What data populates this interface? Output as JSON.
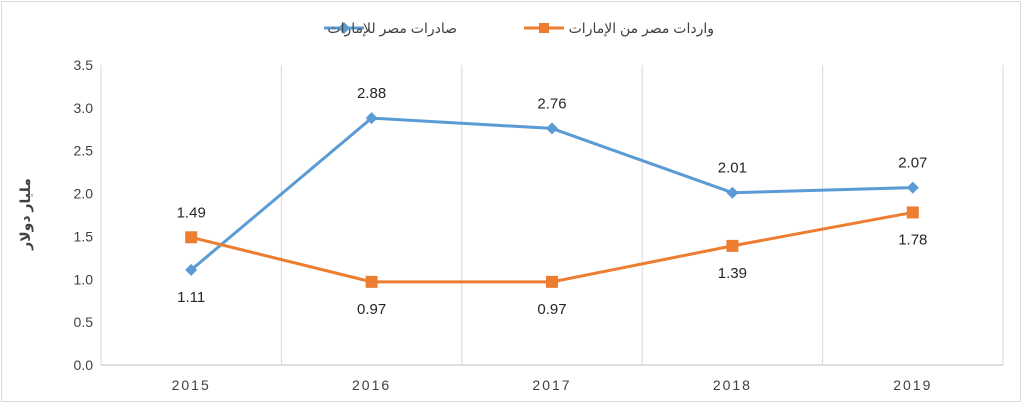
{
  "chart_data": {
    "type": "line",
    "title": "",
    "xlabel": "",
    "ylabel": "مليار دولار",
    "categories": [
      "2015",
      "2016",
      "2017",
      "2018",
      "2019"
    ],
    "ylim": [
      0,
      3.5
    ],
    "yticks": [
      "0.0",
      "0.5",
      "1.0",
      "1.5",
      "2.0",
      "2.5",
      "3.0",
      "3.5"
    ],
    "grid": "vertical",
    "legend_position": "top",
    "series": [
      {
        "name": "صادرات مصر للإمارات",
        "marker": "diamond",
        "color": "#5b9bd5",
        "values": [
          1.11,
          2.88,
          2.76,
          2.01,
          2.07
        ],
        "labels": [
          "1.11",
          "2.88",
          "2.76",
          "2.01",
          "2.07"
        ]
      },
      {
        "name": "واردات مصر من الإمارات",
        "marker": "square",
        "color": "#ed7d31",
        "values": [
          1.49,
          0.97,
          0.97,
          1.39,
          1.78
        ],
        "labels": [
          "1.49",
          "0.97",
          "0.97",
          "1.39",
          "1.78"
        ]
      }
    ]
  }
}
